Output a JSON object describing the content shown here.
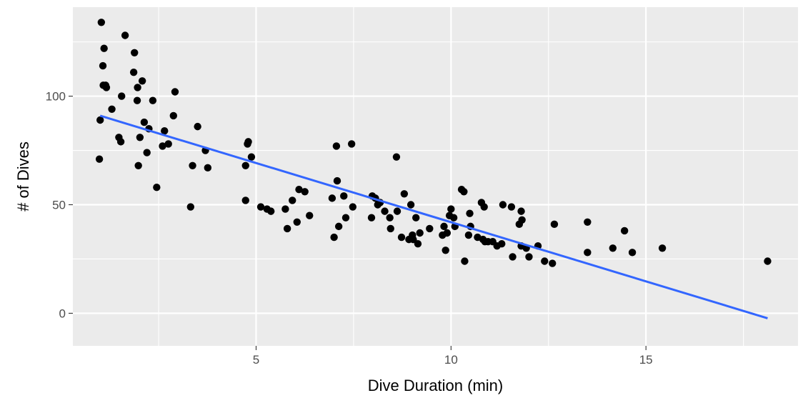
{
  "chart_data": {
    "type": "scatter",
    "title": "",
    "xlabel": "Dive Duration (min)",
    "ylabel": "# of Dives",
    "xlim": [
      0.3,
      18.9
    ],
    "ylim": [
      -15,
      141
    ],
    "x_ticks": [
      5,
      10,
      15
    ],
    "y_ticks": [
      0,
      50,
      100
    ],
    "grid": true,
    "legend": "none",
    "colors": {
      "panel": "#EBEBEB",
      "grid": "#FFFFFF",
      "point": "#000000",
      "fit_line": "#3366FF"
    },
    "points": [
      [
        1.03,
        134
      ],
      [
        1.1,
        122
      ],
      [
        1.07,
        114
      ],
      [
        1.08,
        105
      ],
      [
        1.14,
        105
      ],
      [
        1.16,
        104
      ],
      [
        1.0,
        89
      ],
      [
        0.98,
        71
      ],
      [
        1.3,
        94
      ],
      [
        1.48,
        81
      ],
      [
        1.53,
        79
      ],
      [
        1.55,
        100
      ],
      [
        1.64,
        128
      ],
      [
        1.88,
        120
      ],
      [
        1.86,
        111
      ],
      [
        1.96,
        104
      ],
      [
        1.95,
        98
      ],
      [
        2.08,
        107
      ],
      [
        2.02,
        81
      ],
      [
        1.98,
        68
      ],
      [
        2.13,
        88
      ],
      [
        2.2,
        74
      ],
      [
        2.25,
        85
      ],
      [
        2.35,
        98
      ],
      [
        2.45,
        58
      ],
      [
        2.6,
        77
      ],
      [
        2.65,
        84
      ],
      [
        2.75,
        78
      ],
      [
        2.88,
        91
      ],
      [
        2.92,
        102
      ],
      [
        3.32,
        49
      ],
      [
        3.37,
        68
      ],
      [
        3.5,
        86
      ],
      [
        3.7,
        75
      ],
      [
        3.76,
        67
      ],
      [
        4.73,
        52
      ],
      [
        4.73,
        68
      ],
      [
        4.78,
        78
      ],
      [
        4.8,
        79
      ],
      [
        4.88,
        72
      ],
      [
        5.12,
        49
      ],
      [
        5.28,
        48
      ],
      [
        5.38,
        47
      ],
      [
        5.75,
        48
      ],
      [
        5.8,
        39
      ],
      [
        5.93,
        52
      ],
      [
        6.05,
        42
      ],
      [
        6.1,
        57
      ],
      [
        6.25,
        56
      ],
      [
        6.37,
        45
      ],
      [
        6.95,
        53
      ],
      [
        7.0,
        35
      ],
      [
        7.06,
        77
      ],
      [
        7.08,
        61
      ],
      [
        7.12,
        40
      ],
      [
        7.25,
        54
      ],
      [
        7.3,
        44
      ],
      [
        7.45,
        78
      ],
      [
        7.48,
        49
      ],
      [
        7.96,
        44
      ],
      [
        7.98,
        54
      ],
      [
        8.06,
        53
      ],
      [
        8.12,
        50
      ],
      [
        8.18,
        51
      ],
      [
        8.3,
        47
      ],
      [
        8.43,
        44
      ],
      [
        8.45,
        39
      ],
      [
        8.6,
        72
      ],
      [
        8.62,
        47
      ],
      [
        8.73,
        35
      ],
      [
        8.8,
        55
      ],
      [
        8.92,
        34
      ],
      [
        8.97,
        50
      ],
      [
        9.01,
        36
      ],
      [
        9.03,
        34
      ],
      [
        9.1,
        44
      ],
      [
        9.15,
        32
      ],
      [
        9.2,
        37
      ],
      [
        9.45,
        39
      ],
      [
        9.78,
        36
      ],
      [
        9.82,
        40
      ],
      [
        9.86,
        29
      ],
      [
        9.9,
        37
      ],
      [
        9.96,
        45
      ],
      [
        10.0,
        48
      ],
      [
        10.07,
        44
      ],
      [
        10.1,
        40
      ],
      [
        10.27,
        57
      ],
      [
        10.33,
        56
      ],
      [
        10.35,
        24
      ],
      [
        10.45,
        36
      ],
      [
        10.48,
        46
      ],
      [
        10.5,
        40
      ],
      [
        10.68,
        35
      ],
      [
        10.78,
        51
      ],
      [
        10.82,
        34
      ],
      [
        10.85,
        49
      ],
      [
        10.87,
        33
      ],
      [
        10.95,
        33
      ],
      [
        11.07,
        33
      ],
      [
        11.18,
        31
      ],
      [
        11.3,
        32
      ],
      [
        11.33,
        50
      ],
      [
        11.55,
        49
      ],
      [
        11.58,
        26
      ],
      [
        11.75,
        41
      ],
      [
        11.8,
        47
      ],
      [
        11.8,
        31
      ],
      [
        11.82,
        43
      ],
      [
        11.93,
        30
      ],
      [
        12.0,
        26
      ],
      [
        12.23,
        31
      ],
      [
        12.4,
        24
      ],
      [
        12.6,
        23
      ],
      [
        12.65,
        41
      ],
      [
        13.5,
        42
      ],
      [
        13.5,
        28
      ],
      [
        14.15,
        30
      ],
      [
        14.45,
        38
      ],
      [
        14.65,
        28
      ],
      [
        15.42,
        30
      ],
      [
        18.12,
        24
      ]
    ],
    "fit_line": {
      "x": [
        1.0,
        18.12
      ],
      "y": [
        91.0,
        -2.3
      ]
    }
  }
}
